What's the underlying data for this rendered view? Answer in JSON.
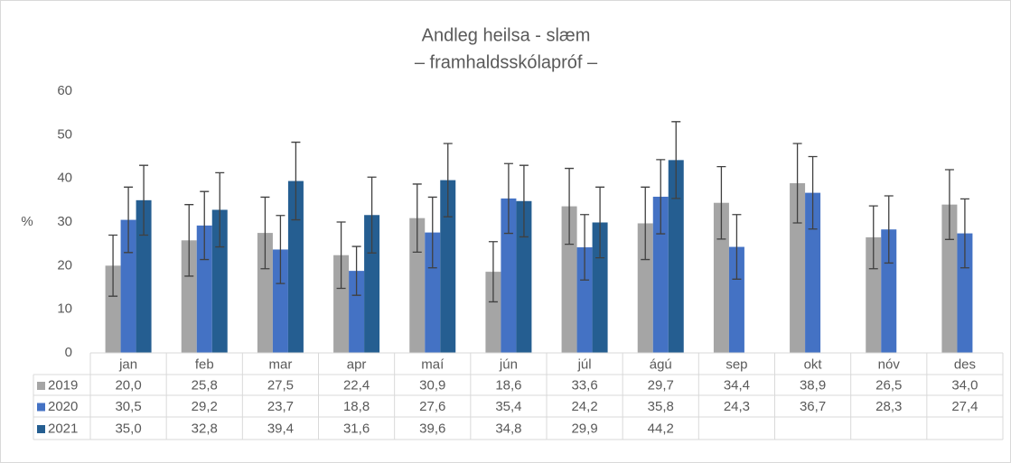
{
  "chart_data": {
    "type": "bar",
    "title": "Andleg heilsa - slæm",
    "subtitle": "– framhaldsskólapróf –",
    "y_label": "%",
    "categories": [
      "jan",
      "feb",
      "mar",
      "apr",
      "maí",
      "jún",
      "júl",
      "ágú",
      "sep",
      "okt",
      "nóv",
      "des"
    ],
    "ylim": [
      0,
      60
    ],
    "yticks": [
      0,
      10,
      20,
      30,
      40,
      50,
      60
    ],
    "grid": false,
    "series": [
      {
        "name": "2019",
        "color": "#a5a5a5",
        "values": [
          20.0,
          25.8,
          27.5,
          22.4,
          30.9,
          18.6,
          33.6,
          29.7,
          34.4,
          38.9,
          26.5,
          34.0
        ],
        "value_labels": [
          "20,0",
          "25,8",
          "27,5",
          "22,4",
          "30,9",
          "18,6",
          "33,6",
          "29,7",
          "34,4",
          "38,9",
          "26,5",
          "34,0"
        ],
        "errors": [
          7.0,
          8.2,
          8.2,
          7.6,
          7.8,
          6.9,
          8.7,
          8.3,
          8.3,
          9.1,
          7.2,
          8.0
        ]
      },
      {
        "name": "2020",
        "color": "#4472c4",
        "values": [
          30.5,
          29.2,
          23.7,
          18.8,
          27.6,
          35.4,
          24.2,
          35.8,
          24.3,
          36.7,
          28.3,
          27.4
        ],
        "value_labels": [
          "30,5",
          "29,2",
          "23,7",
          "18,8",
          "27,6",
          "35,4",
          "24,2",
          "35,8",
          "24,3",
          "36,7",
          "28,3",
          "27,4"
        ],
        "errors": [
          7.5,
          7.8,
          7.8,
          5.6,
          8.1,
          8.0,
          7.5,
          8.5,
          7.4,
          8.3,
          7.7,
          7.9
        ]
      },
      {
        "name": "2021",
        "color": "#255e91",
        "values": [
          35.0,
          32.8,
          39.4,
          31.6,
          39.6,
          34.8,
          29.9,
          44.2,
          null,
          null,
          null,
          null
        ],
        "value_labels": [
          "35,0",
          "32,8",
          "39,4",
          "31,6",
          "39,6",
          "34,8",
          "29,9",
          "44,2",
          null,
          null,
          null,
          null
        ],
        "errors": [
          8.0,
          8.5,
          8.9,
          8.7,
          8.4,
          8.2,
          8.1,
          8.8,
          null,
          null,
          null,
          null
        ]
      }
    ]
  }
}
